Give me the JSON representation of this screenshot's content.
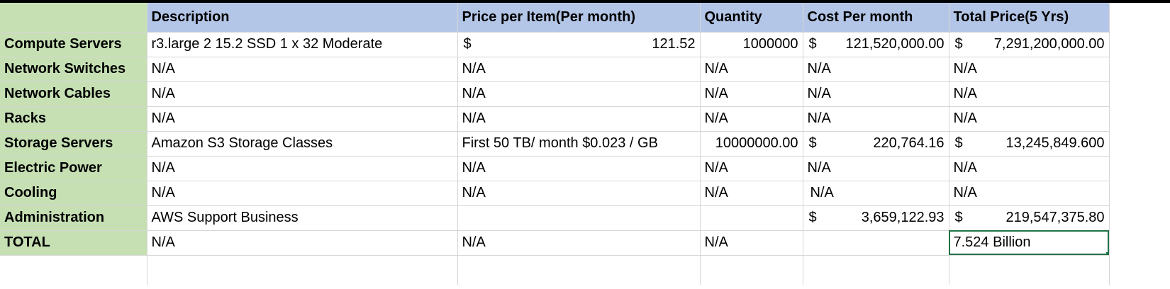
{
  "colors": {
    "label_bg": "#c6e0b4",
    "label_text": "#843c0c",
    "header_bg": "#b4c6e7",
    "header_text": "#1f3864",
    "selection": "#217346"
  },
  "headers": {
    "description": "Description",
    "price": "Price per Item(Per month)",
    "quantity": "Quantity",
    "cost": "Cost Per month",
    "total": "Total Price(5 Yrs)"
  },
  "rows": [
    {
      "label": "Compute Servers",
      "description": "r3.large 2 15.2 SSD 1 x 32 Moderate",
      "price_symbol": "$",
      "price": "121.52",
      "quantity": "1000000",
      "cost_symbol": "$",
      "cost": "121,520,000.00",
      "total_symbol": "$",
      "total": "7,291,200,000.00"
    },
    {
      "label": "Network Switches",
      "description": "N/A",
      "price": "N/A",
      "quantity": "N/A",
      "cost": "N/A",
      "total": "N/A"
    },
    {
      "label": "Network Cables",
      "description": "N/A",
      "price": "N/A",
      "quantity": "N/A",
      "cost": "N/A",
      "total": "N/A"
    },
    {
      "label": "Racks",
      "description": "N/A",
      "price": "N/A",
      "quantity": "N/A",
      "cost": "N/A",
      "total": "N/A"
    },
    {
      "label": "Storage Servers",
      "description": "Amazon S3 Storage Classes",
      "price": "First 50 TB/ month $0.023 / GB",
      "quantity": "10000000.00",
      "cost_symbol": "$",
      "cost": "220,764.16",
      "total_symbol": "$",
      "total": "13,245,849.600"
    },
    {
      "label": "Electric Power",
      "description": "N/A",
      "price": "N/A",
      "quantity": "N/A",
      "cost": "N/A",
      "total": "N/A"
    },
    {
      "label": "Cooling",
      "description": "N/A",
      "price": "N/A",
      "quantity": "N/A",
      "cost": "N/A",
      "total": "N/A"
    },
    {
      "label": "Administration",
      "description": "AWS Support Business",
      "price": "",
      "quantity": "",
      "cost_symbol": "$",
      "cost": "3,659,122.93",
      "total_symbol": "$",
      "total": "219,547,375.80"
    },
    {
      "label": "TOTAL",
      "description": "N/A",
      "price": "N/A",
      "quantity": "N/A",
      "cost": "",
      "total": "7.524 Billion"
    }
  ]
}
